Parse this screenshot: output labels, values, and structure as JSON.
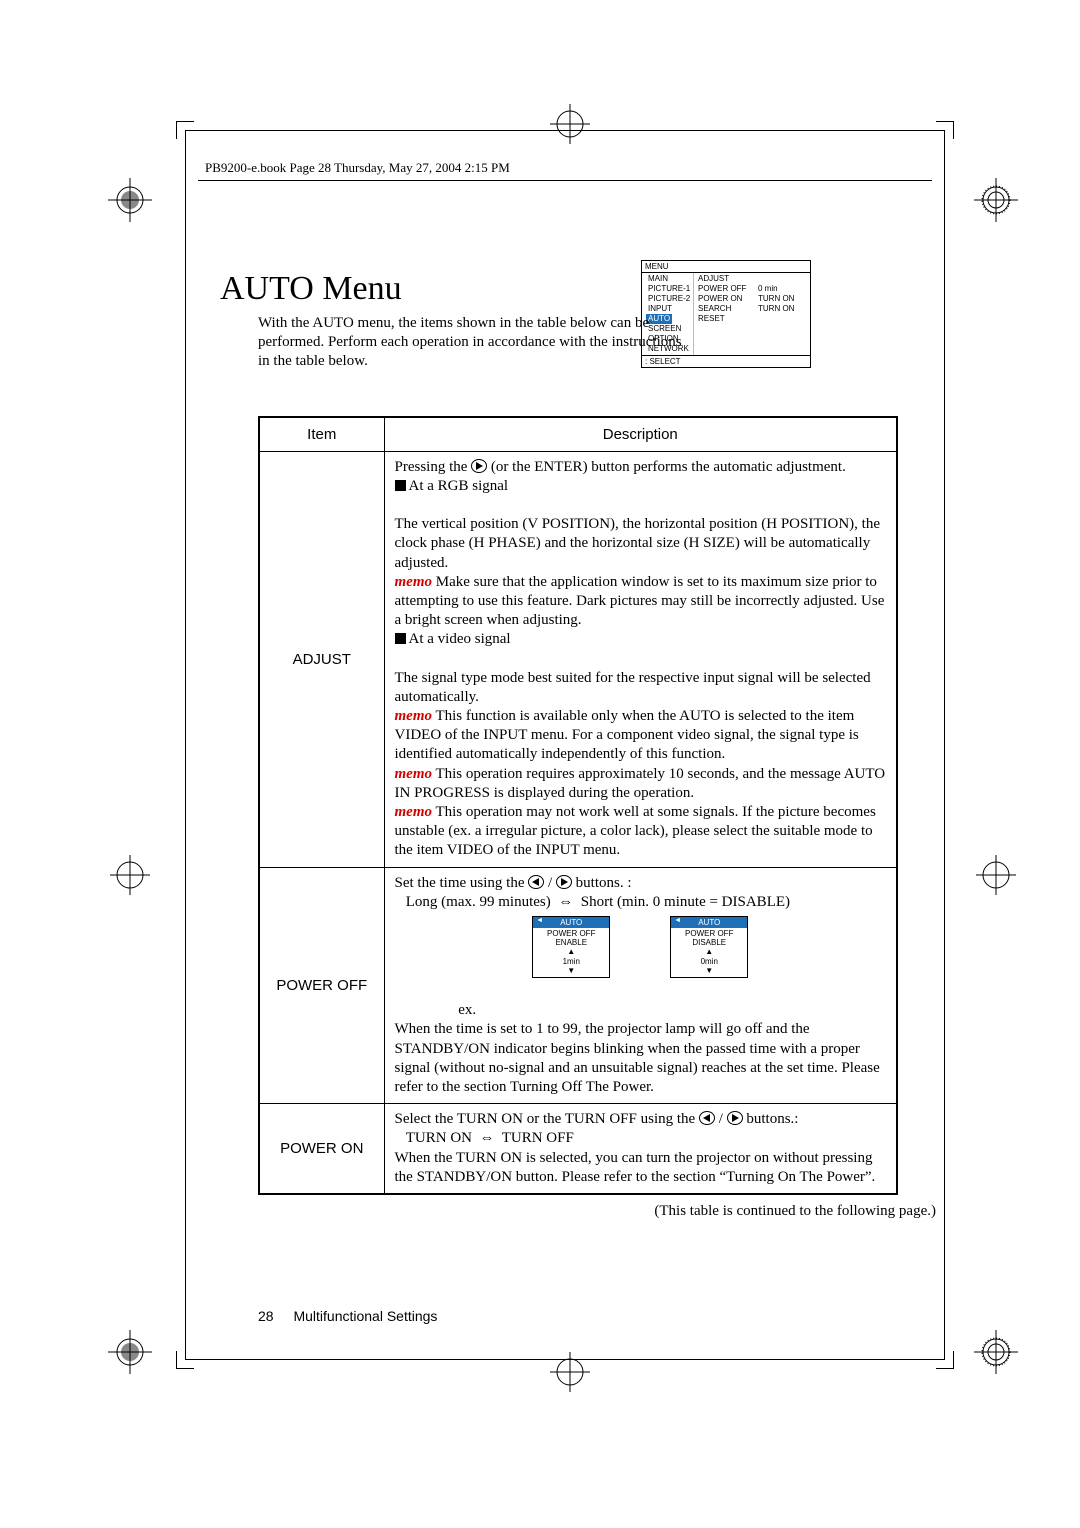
{
  "header": {
    "line": "PB9200-e.book  Page 28  Thursday, May 27, 2004  2:15 PM"
  },
  "title": "AUTO Menu",
  "intro": "With the AUTO menu, the items shown in the table below can be performed. Perform each operation in accordance with the instructions in the table below.",
  "menu_box": {
    "title": "MENU",
    "col1": [
      "MAIN",
      "PICTURE-1",
      "PICTURE-2",
      "INPUT",
      "AUTO",
      "SCREEN",
      "OPTION",
      "NETWORK"
    ],
    "highlight_index": 4,
    "col2": [
      "ADJUST",
      "POWER OFF",
      "POWER ON",
      "SEARCH",
      "RESET"
    ],
    "col3": [
      "",
      "0 min",
      "TURN ON",
      "TURN ON",
      ""
    ],
    "footer": "  : SELECT"
  },
  "table": {
    "headers": {
      "item": "Item",
      "desc": "Description"
    },
    "rows": [
      {
        "label": "ADJUST",
        "desc_html": "Pressing the {RIGHT} (or the ENTER) button performs the automatic adjustment.<br><span class=\"sq\"></span>At a RGB signal<br><br>The vertical position (V POSITION), the horizontal position (H POSITION), the clock phase (H PHASE) and the horizontal size (H SIZE) will be automatically adjusted.<br><span class=\"memo\">memo</span> Make sure that the application window is set to its maximum size prior to attempting to use this feature. Dark pictures may still be incorrectly adjusted. Use a bright screen when adjusting.<br><span class=\"sq\"></span>At a video signal<br><br>The signal type mode best suited for the respective input signal will be selected automatically.<br><span class=\"memo\">memo</span> This function is available only when the AUTO is selected to the item VIDEO of the INPUT menu. For a component video signal, the signal type is identified automatically independently of this function.<br><span class=\"memo\">memo</span> This operation requires approximately 10 seconds, and the message AUTO IN PROGRESS is displayed during the operation.<br><span class=\"memo\">memo</span> This operation may not work well at some signals. If the picture becomes unstable (ex. a irregular picture, a color lack), please select the suitable mode to the item VIDEO of the INPUT menu."
      },
      {
        "label": "POWER OFF",
        "desc_html": "Set the time using the {LEFT} / {RIGHT} buttons. :<br>&nbsp;&nbsp;&nbsp;Long (max. 99 minutes) &nbsp;⇔&nbsp; Short (min. 0 minute = DISABLE)<br>{OSD_ROW}<br>&nbsp;&nbsp;&nbsp;&nbsp;&nbsp;&nbsp;&nbsp;&nbsp;&nbsp;&nbsp;&nbsp;&nbsp;&nbsp;&nbsp;&nbsp;&nbsp;&nbsp;ex.<br>When the time is set to 1 to 99, the projector lamp will go off and the STANDBY/ON indicator begins blinking when the passed time with a proper signal (without no-signal and an unsuitable signal) reaches at the set time. Please refer to the section Turning Off The Power."
      },
      {
        "label": "POWER ON",
        "desc_html": "Select the TURN ON or the TURN OFF using the {LEFT} / {RIGHT} buttons.:<br>&nbsp;&nbsp;&nbsp;TURN ON &nbsp;⇔&nbsp; TURN OFF<br>When the TURN ON is selected, you can turn the projector on without pressing the STANDBY/ON button. Please refer to the section &ldquo;Turning On The Power&rdquo;."
      }
    ]
  },
  "osd": {
    "left": {
      "title": "AUTO",
      "lines": [
        "POWER OFF",
        "ENABLE",
        "▲",
        "1min",
        "▼"
      ]
    },
    "right": {
      "title": "AUTO",
      "lines": [
        "POWER OFF",
        "DISABLE",
        "▲",
        "0min",
        "▼"
      ]
    }
  },
  "table_note": "(This table is continued to the following page.)",
  "footer": {
    "page": "28",
    "text": "Multifunctional Settings"
  },
  "colors": {
    "memo": "#d40000",
    "highlight": "#1e6fb8",
    "text": "#000000",
    "bg": "#ffffff"
  }
}
